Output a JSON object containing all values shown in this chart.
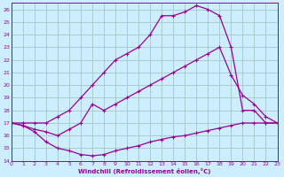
{
  "xlabel": "Windchill (Refroidissement éolien,°C)",
  "xlim": [
    0,
    23
  ],
  "ylim": [
    14,
    26.5
  ],
  "yticks": [
    14,
    15,
    16,
    17,
    18,
    19,
    20,
    21,
    22,
    23,
    24,
    25,
    26
  ],
  "xticks": [
    0,
    1,
    2,
    3,
    4,
    5,
    6,
    7,
    8,
    9,
    10,
    11,
    12,
    13,
    14,
    15,
    16,
    17,
    18,
    19,
    20,
    21,
    22,
    23
  ],
  "bg_color": "#cceeff",
  "grid_color": "#aacccc",
  "line_color": "#990099",
  "line_top_x": [
    0,
    1,
    2,
    3,
    4,
    5,
    6,
    7,
    8,
    9,
    10,
    11,
    12,
    13,
    14,
    15,
    16,
    17,
    18,
    19,
    20,
    21,
    22,
    23
  ],
  "line_top_y": [
    17,
    17,
    17,
    17,
    17.5,
    18,
    19,
    20,
    21,
    22,
    22.5,
    23,
    24,
    25.5,
    25.5,
    25.8,
    26.3,
    26.0,
    25.5,
    23.0,
    18.0,
    18.0,
    17.0,
    17.0
  ],
  "line_mid_x": [
    0,
    1,
    2,
    3,
    4,
    5,
    6,
    7,
    8,
    9,
    10,
    11,
    12,
    13,
    14,
    15,
    16,
    17,
    18,
    19,
    20,
    21,
    22,
    23
  ],
  "line_mid_y": [
    17,
    16.8,
    16.5,
    16.3,
    16.0,
    16.5,
    17.0,
    18.5,
    18.0,
    18.5,
    19.0,
    19.5,
    20.0,
    20.5,
    21.0,
    21.5,
    22.0,
    22.5,
    23.0,
    20.8,
    19.2,
    18.5,
    17.5,
    17.0
  ],
  "line_bot_x": [
    0,
    1,
    2,
    3,
    4,
    5,
    6,
    7,
    8,
    9,
    10,
    11,
    12,
    13,
    14,
    15,
    16,
    17,
    18,
    19,
    20,
    21,
    22,
    23
  ],
  "line_bot_y": [
    17,
    16.8,
    16.3,
    15.5,
    15.0,
    14.8,
    14.5,
    14.4,
    14.5,
    14.8,
    15.0,
    15.2,
    15.5,
    15.7,
    15.9,
    16.0,
    16.2,
    16.4,
    16.6,
    16.8,
    17.0,
    17.0,
    17.0,
    17.0
  ]
}
